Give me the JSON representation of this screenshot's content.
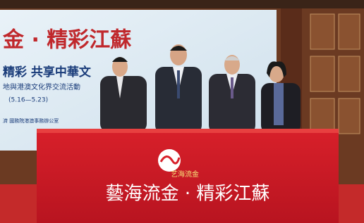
{
  "backdrop": {
    "title": "金 · 精彩江蘇",
    "subtitle": "精彩  共享中華文",
    "line": "地與港澳文化界交流活動",
    "dates": "(5.16—5.23)",
    "footer": "濟   國務院港澳事務辦公室"
  },
  "podium": {
    "logo": "艺海流金",
    "title": "藝海流金 · 精彩江蘇"
  }
}
